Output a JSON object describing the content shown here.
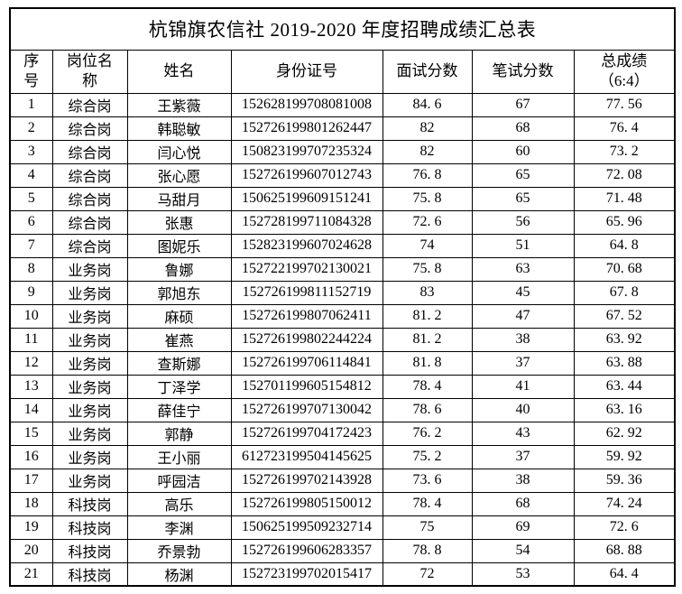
{
  "title": "杭锦旗农信社 2019-2020 年度招聘成绩汇总表",
  "table": {
    "columns": [
      "serial",
      "position",
      "name",
      "id-number",
      "interview-score",
      "written-score",
      "total-score"
    ],
    "headers": [
      {
        "id": "serial",
        "lines": [
          "序",
          "号"
        ]
      },
      {
        "id": "position",
        "lines": [
          "岗位名",
          "称"
        ]
      },
      {
        "id": "name",
        "lines": [
          "姓名"
        ]
      },
      {
        "id": "id-number",
        "lines": [
          "身份证号"
        ]
      },
      {
        "id": "interview-score",
        "lines": [
          "面试分数"
        ]
      },
      {
        "id": "written-score",
        "lines": [
          "笔试分数"
        ]
      },
      {
        "id": "total-score",
        "lines": [
          "总成绩",
          "（6:4）"
        ]
      }
    ],
    "rows": [
      [
        "1",
        "综合岗",
        "王紫薇",
        "152628199708081008",
        "84.6",
        "67",
        "77.56"
      ],
      [
        "2",
        "综合岗",
        "韩聪敏",
        "152726199801262447",
        "82",
        "68",
        "76.4"
      ],
      [
        "3",
        "综合岗",
        "闫心悦",
        "150823199707235324",
        "82",
        "60",
        "73.2"
      ],
      [
        "4",
        "综合岗",
        "张心愿",
        "152726199607012743",
        "76.8",
        "65",
        "72.08"
      ],
      [
        "5",
        "综合岗",
        "马甜月",
        "150625199609151241",
        "75.8",
        "65",
        "71.48"
      ],
      [
        "6",
        "综合岗",
        "张惠",
        "152728199711084328",
        "72.6",
        "56",
        "65.96"
      ],
      [
        "7",
        "综合岗",
        "图妮乐",
        "152823199607024628",
        "74",
        "51",
        "64.8"
      ],
      [
        "8",
        "业务岗",
        "鲁娜",
        "152722199702130021",
        "75.8",
        "63",
        "70.68"
      ],
      [
        "9",
        "业务岗",
        "郭旭东",
        "152726199811152719",
        "83",
        "45",
        "67.8"
      ],
      [
        "10",
        "业务岗",
        "麻硕",
        "152726199807062411",
        "81.2",
        "47",
        "67.52"
      ],
      [
        "11",
        "业务岗",
        "崔燕",
        "152726199802244224",
        "81.2",
        "38",
        "63.92"
      ],
      [
        "12",
        "业务岗",
        "查斯娜",
        "152726199706114841",
        "81.8",
        "37",
        "63.88"
      ],
      [
        "13",
        "业务岗",
        "丁泽学",
        "152701199605154812",
        "78.4",
        "41",
        "63.44"
      ],
      [
        "14",
        "业务岗",
        "薛佳宁",
        "152726199707130042",
        "78.6",
        "40",
        "63.16"
      ],
      [
        "15",
        "业务岗",
        "郭静",
        "152726199704172423",
        "76.2",
        "43",
        "62.92"
      ],
      [
        "16",
        "业务岗",
        "王小丽",
        "612723199504145625",
        "75.2",
        "37",
        "59.92"
      ],
      [
        "17",
        "业务岗",
        "呼园洁",
        "152726199702143928",
        "73.6",
        "38",
        "59.36"
      ],
      [
        "18",
        "科技岗",
        "高乐",
        "152726199805150012",
        "78.4",
        "68",
        "74.24"
      ],
      [
        "19",
        "科技岗",
        "李渊",
        "150625199509232714",
        "75",
        "69",
        "72.6"
      ],
      [
        "20",
        "科技岗",
        "乔景勃",
        "152726199606283357",
        "78.8",
        "54",
        "68.88"
      ],
      [
        "21",
        "科技岗",
        "杨渊",
        "152723199702015417",
        "72",
        "53",
        "64.4"
      ]
    ]
  }
}
